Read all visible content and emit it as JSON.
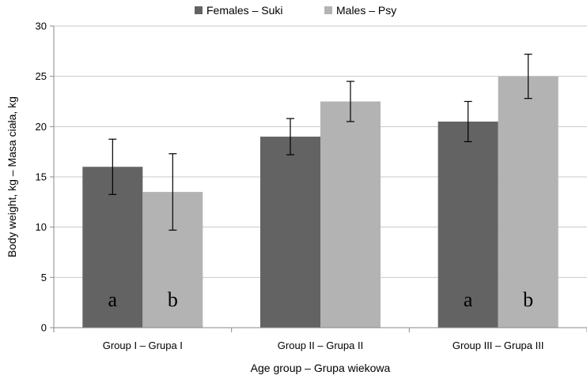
{
  "chart_data": {
    "type": "bar",
    "title": "",
    "xlabel": "Age group – Grupa wiekowa",
    "ylabel": "Body weight, kg – Masa ciała, kg",
    "categories": [
      "Group I – Grupa I",
      "Group II – Grupa II",
      "Group III – Grupa III"
    ],
    "ylim": [
      0,
      30
    ],
    "yticks": [
      "0",
      "5",
      "10",
      "15",
      "20",
      "25",
      "30"
    ],
    "grid": true,
    "legend_position": "top",
    "series": [
      {
        "name": "Females – Suki",
        "color": "#636363",
        "values": [
          16.0,
          19.0,
          20.5
        ],
        "error": [
          2.75,
          1.8,
          2.0
        ],
        "labels": [
          "a",
          "",
          "a"
        ]
      },
      {
        "name": "Males – Psy",
        "color": "#b3b3b3",
        "values": [
          13.5,
          22.5,
          25.0
        ],
        "error": [
          3.8,
          2.0,
          2.2
        ],
        "labels": [
          "b",
          "",
          "b"
        ]
      }
    ]
  }
}
